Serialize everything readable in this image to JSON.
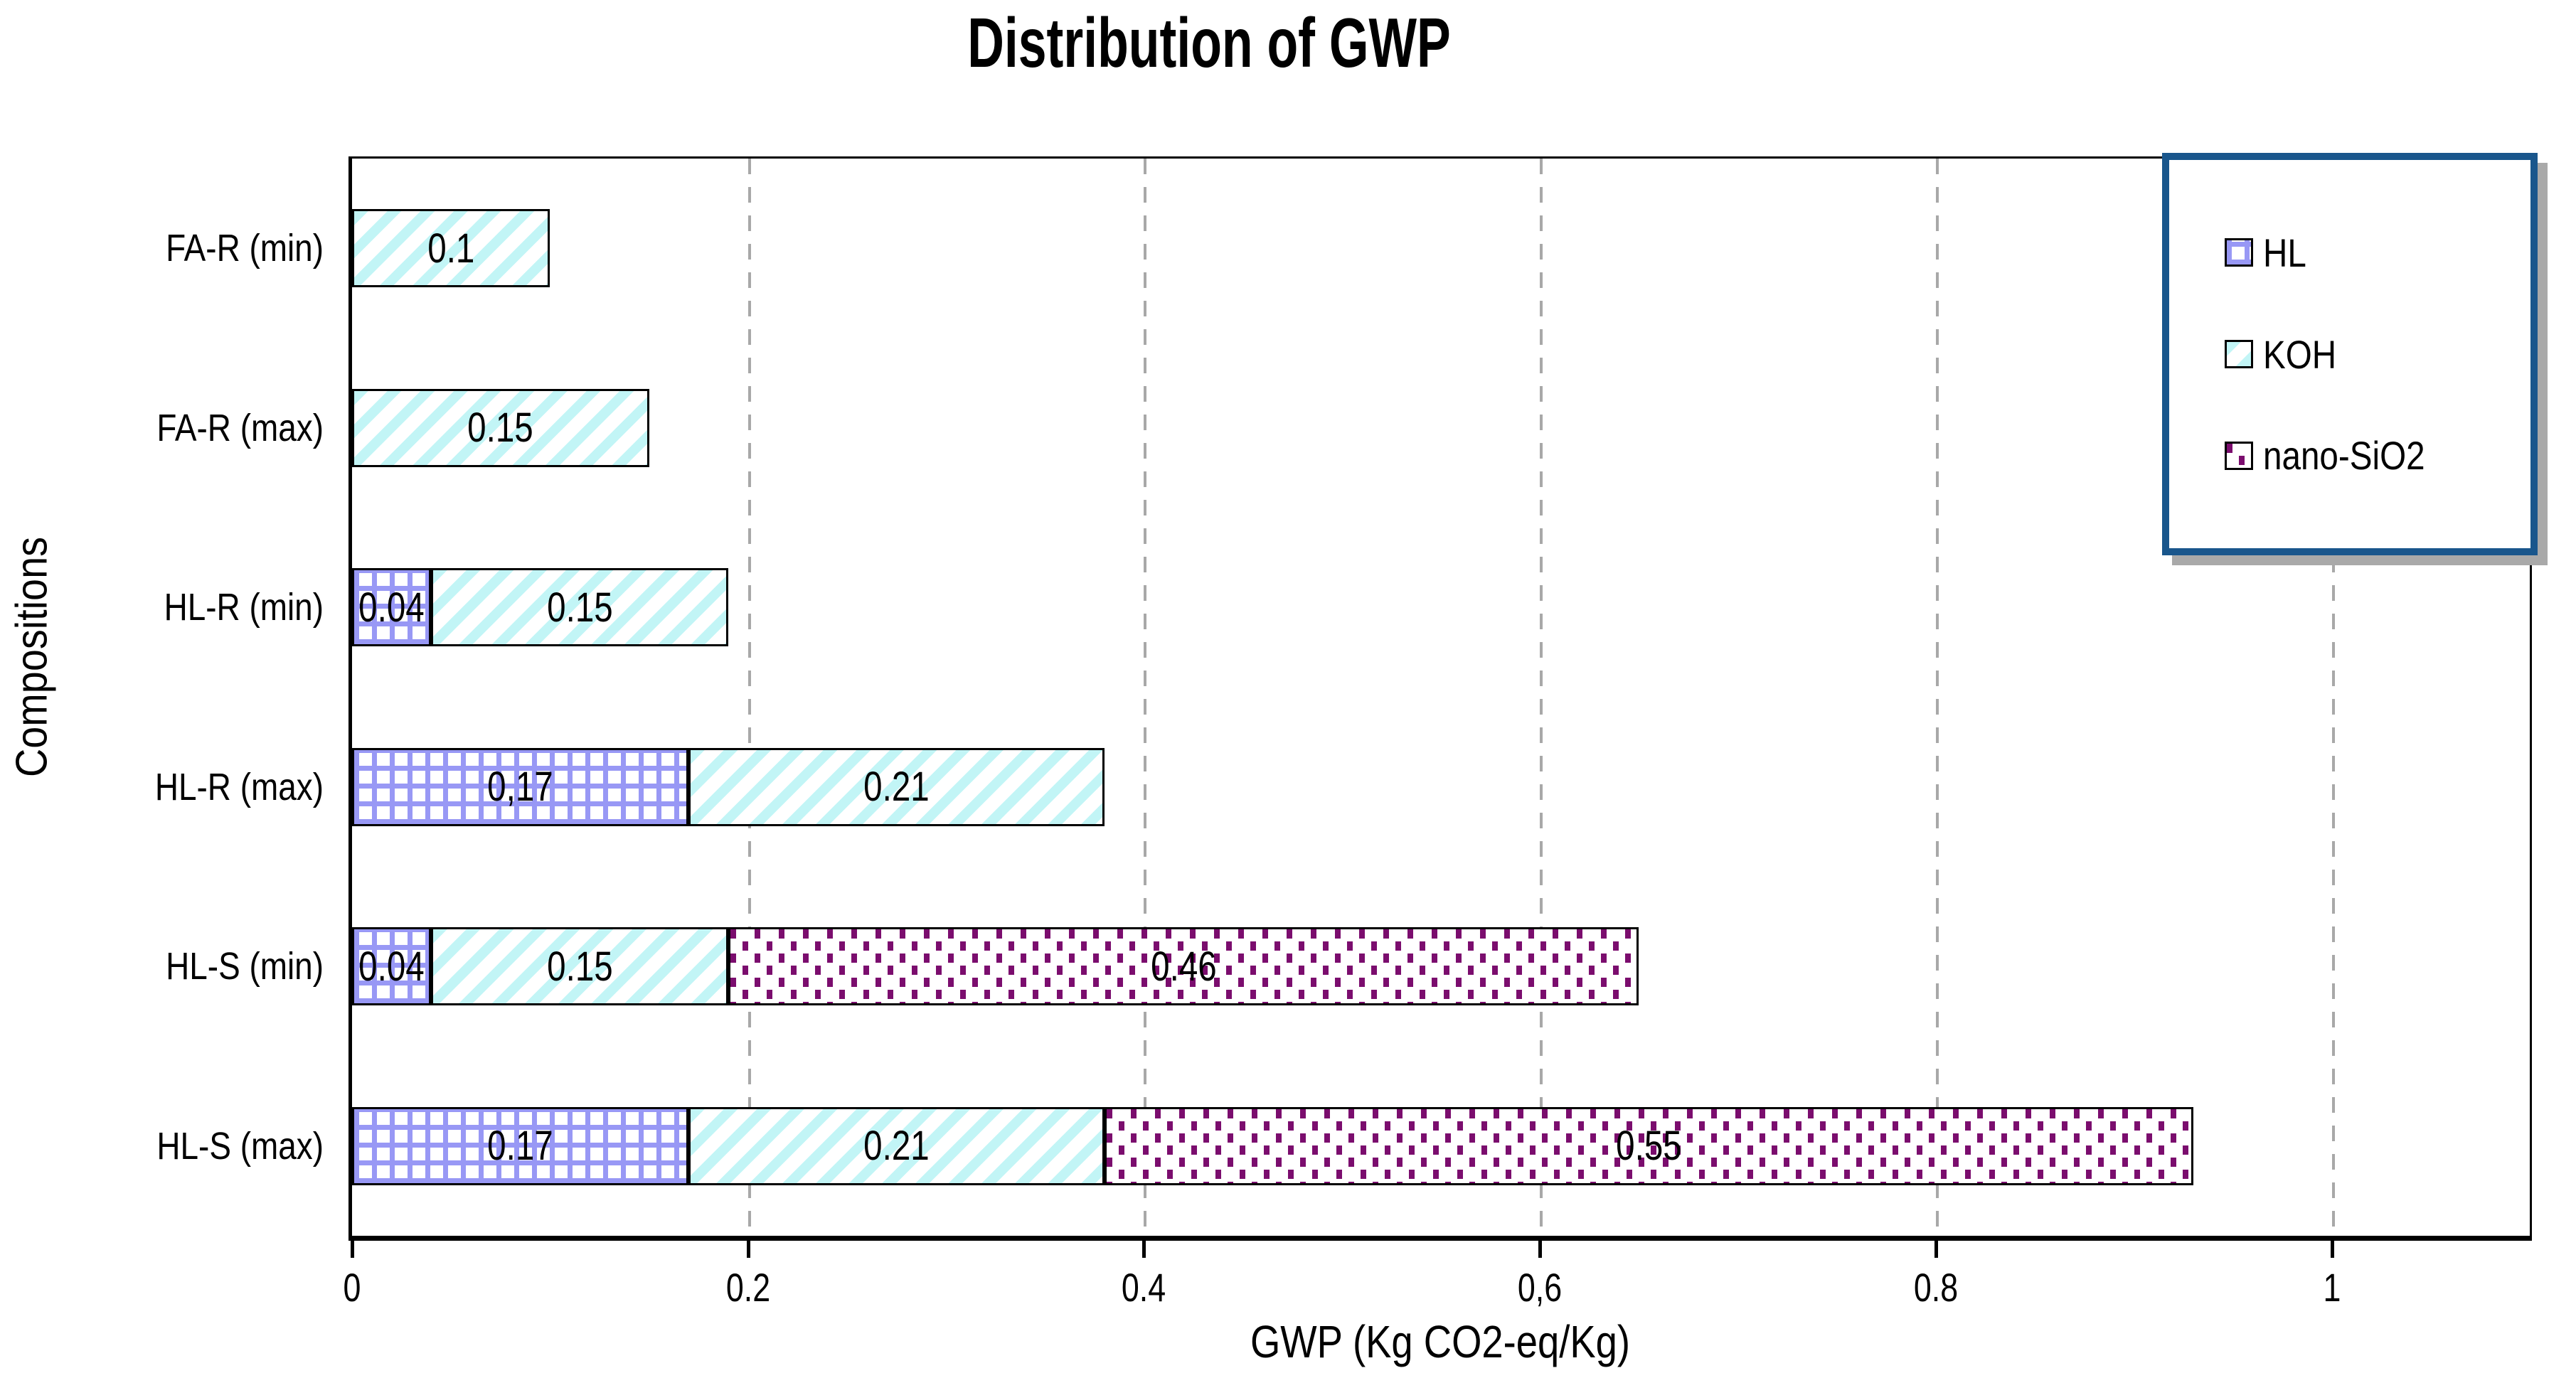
{
  "title": "Distribution of GWP",
  "axes": {
    "x_label": "GWP (Kg CO2-eq/Kg)",
    "y_label": "Compositions"
  },
  "legend": {
    "items": [
      {
        "label": "HL",
        "pattern": "hl"
      },
      {
        "label": "KOH",
        "pattern": "koh"
      },
      {
        "label": "nano-SiO2",
        "pattern": "nano"
      }
    ]
  },
  "colors": {
    "hl_pattern": "#9898F5",
    "koh_pattern": "#C2F5F6",
    "nano_pattern": "#7B0D6E",
    "legend_border": "#19568C",
    "legend_shadow": "#A9A9A9",
    "gridline": "#A8A8A8",
    "bar_border": "#000000"
  },
  "chart_data": {
    "type": "bar",
    "orientation": "horizontal",
    "stacked": true,
    "title": "Distribution of GWP",
    "xlabel": "GWP (Kg CO2-eq/Kg)",
    "ylabel": "Compositions",
    "xlim": [
      0,
      1.1
    ],
    "grid": "vertical-dashed",
    "legend_position": "top-right",
    "x_ticks": [
      {
        "value": 0,
        "label": "0"
      },
      {
        "value": 0.2,
        "label": "0.2"
      },
      {
        "value": 0.4,
        "label": "0.4"
      },
      {
        "value": 0.6,
        "label": "0,6"
      },
      {
        "value": 0.8,
        "label": "0.8"
      },
      {
        "value": 1,
        "label": "1"
      }
    ],
    "categories": [
      "FA-R (min)",
      "FA-R (max)",
      "HL-R (min)",
      "HL-R (max)",
      "HL-S (min)",
      "HL-S (max)"
    ],
    "series": [
      {
        "name": "HL",
        "pattern": "hl",
        "values": [
          0,
          0,
          0.04,
          0.17,
          0.04,
          0.17
        ]
      },
      {
        "name": "KOH",
        "pattern": "koh",
        "values": [
          0.1,
          0.15,
          0.15,
          0.21,
          0.15,
          0.21
        ]
      },
      {
        "name": "nano-SiO2",
        "pattern": "nano",
        "values": [
          0,
          0,
          0,
          0,
          0.46,
          0.55
        ]
      }
    ],
    "rows": [
      {
        "category": "FA-R (min)",
        "segments": [
          {
            "series": "KOH",
            "value": 0.1,
            "label": "0.1"
          }
        ]
      },
      {
        "category": "FA-R (max)",
        "segments": [
          {
            "series": "KOH",
            "value": 0.15,
            "label": "0.15"
          }
        ]
      },
      {
        "category": "HL-R (min)",
        "segments": [
          {
            "series": "HL",
            "value": 0.04,
            "label": "0.04"
          },
          {
            "series": "KOH",
            "value": 0.15,
            "label": "0.15"
          }
        ]
      },
      {
        "category": "HL-R (max)",
        "segments": [
          {
            "series": "HL",
            "value": 0.17,
            "label": "0,17"
          },
          {
            "series": "KOH",
            "value": 0.21,
            "label": "0.21"
          }
        ]
      },
      {
        "category": "HL-S (min)",
        "segments": [
          {
            "series": "HL",
            "value": 0.04,
            "label": "0.04"
          },
          {
            "series": "KOH",
            "value": 0.15,
            "label": "0.15"
          },
          {
            "series": "nano-SiO2",
            "value": 0.46,
            "label": "0.46"
          }
        ]
      },
      {
        "category": "HL-S (max)",
        "segments": [
          {
            "series": "HL",
            "value": 0.17,
            "label": "0.17"
          },
          {
            "series": "KOH",
            "value": 0.21,
            "label": "0.21"
          },
          {
            "series": "nano-SiO2",
            "value": 0.55,
            "label": "0.55"
          }
        ]
      }
    ]
  }
}
